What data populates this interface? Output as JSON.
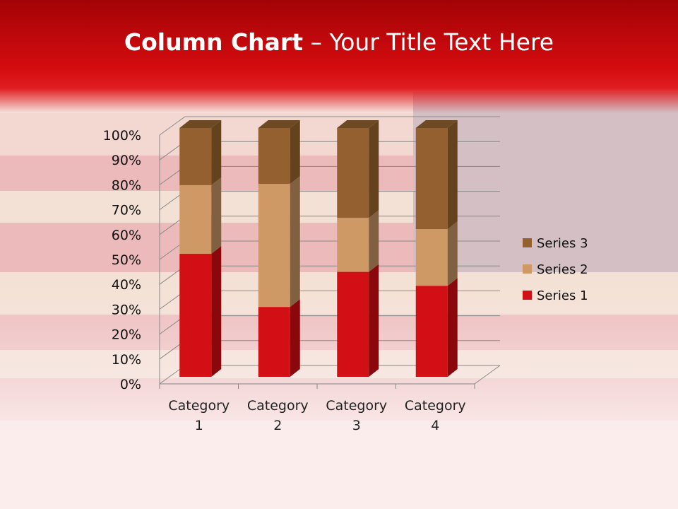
{
  "title": {
    "bold": "Column Chart",
    "rest": " – Your Title Text Here"
  },
  "chart_data": {
    "type": "bar",
    "subtype": "100% stacked 3-D column",
    "categories": [
      "Category 1",
      "Category 2",
      "Category 3",
      "Category 4"
    ],
    "category_lines": [
      [
        "Category",
        "1"
      ],
      [
        "Category",
        "2"
      ],
      [
        "Category",
        "3"
      ],
      [
        "Category",
        "4"
      ]
    ],
    "series": [
      {
        "name": "Series 1",
        "values": [
          4.3,
          2.5,
          3.5,
          4.5
        ],
        "color": "#d20f14",
        "side": "#8a080c"
      },
      {
        "name": "Series 2",
        "values": [
          2.4,
          4.4,
          1.8,
          2.8
        ],
        "color": "#cf9966",
        "side": "#806040"
      },
      {
        "name": "Series 3",
        "values": [
          2,
          2,
          3,
          5
        ],
        "color": "#956030",
        "side": "#65421e"
      }
    ],
    "y_ticks": [
      "0%",
      "10%",
      "20%",
      "30%",
      "40%",
      "50%",
      "60%",
      "70%",
      "80%",
      "90%",
      "100%"
    ],
    "ylim": [
      0,
      100
    ],
    "grid": true,
    "legend": "right"
  }
}
